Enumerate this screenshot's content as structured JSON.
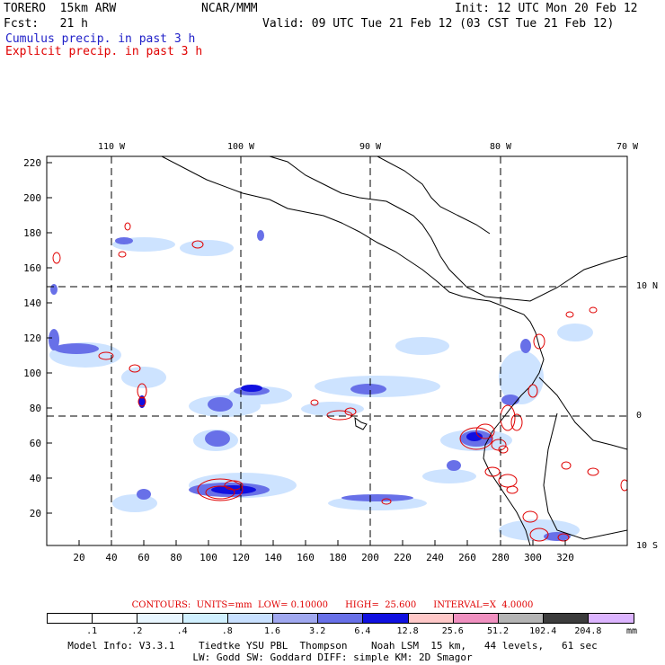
{
  "header": {
    "model": "TORERO  15km ARW",
    "center": "NCAR/MMM",
    "init": "Init: 12 UTC Mon 20 Feb 12",
    "fcst": "Fcst:   21 h",
    "valid": "Valid: 09 UTC Tue 21 Feb 12 (03 CST Tue 21 Feb 12)",
    "field1": "Cumulus precip. in past 3 h",
    "field2": "Explicit precip. in past 3 h"
  },
  "axes": {
    "y_ticks": [
      "220",
      "200",
      "180",
      "160",
      "140",
      "120",
      "100",
      "80",
      "60",
      "40",
      "20"
    ],
    "x_ticks": [
      "20",
      "40",
      "60",
      "80",
      "100",
      "120",
      "140",
      "160",
      "180",
      "200",
      "220",
      "240",
      "260",
      "280",
      "300",
      "320"
    ],
    "lon_labels": [
      "110 W",
      "100 W",
      "90 W",
      "80 W",
      "70 W"
    ],
    "lat_labels": [
      "10 N",
      "0",
      "10 S"
    ]
  },
  "contour_info": "CONTOURS:  UNITS=mm  LOW= 0.10000      HIGH=  25.600      INTERVAL=X  4.0000",
  "legend": {
    "unit": "mm",
    "labels": [
      ".1",
      ".2",
      ".4",
      ".8",
      "1.6",
      "3.2",
      "6.4",
      "12.8",
      "25.6",
      "51.2",
      "102.4",
      "204.8"
    ],
    "colors": [
      "#ffffff",
      "#ffffff",
      "#e8f6ff",
      "#d0f0ff",
      "#c8e0ff",
      "#a0a8f0",
      "#6870e8",
      "#1010e0",
      "#ffc8c8",
      "#f090c0",
      "#b4b4b4",
      "#3c3c3c",
      "#dcb4ff"
    ]
  },
  "footer": {
    "line1": "Model Info: V3.3.1    Tiedtke YSU PBL  Thompson    Noah LSM  15 km,   44 levels,   61 sec",
    "line2": "LW: Godd SW: Goddard DIFF: simple KM: 2D Smagor"
  }
}
